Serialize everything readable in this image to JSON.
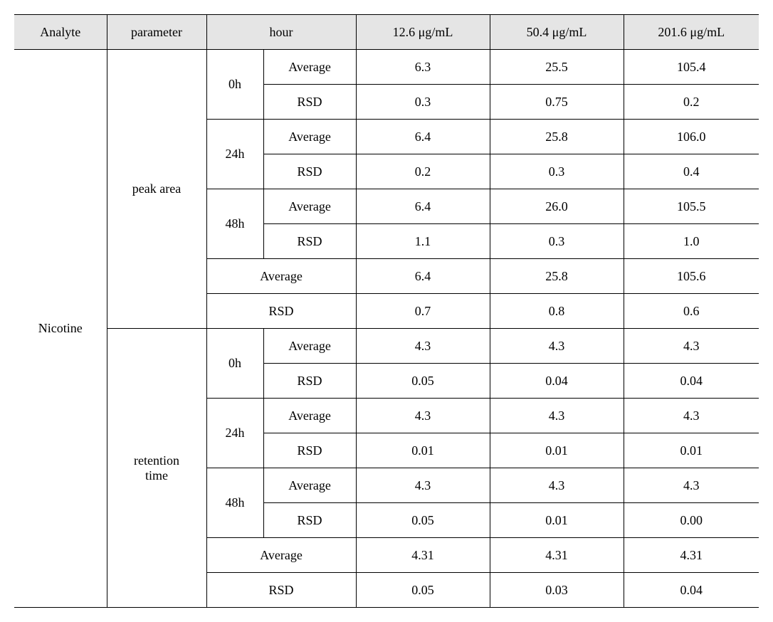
{
  "headers": {
    "analyte": "Analyte",
    "parameter": "parameter",
    "hour": "hour",
    "c1": "12.6 μg/mL",
    "c2": "50.4 μg/mL",
    "c3": "201.6 μg/mL"
  },
  "analyte": "Nicotine",
  "parameters": {
    "peak_area": {
      "label": "peak area",
      "times": {
        "h0": {
          "label": "0h",
          "avg_label": "Average",
          "rsd_label": "RSD",
          "avg": [
            "6.3",
            "25.5",
            "105.4"
          ],
          "rsd": [
            "0.3",
            "0.75",
            "0.2"
          ]
        },
        "h24": {
          "label": "24h",
          "avg_label": "Average",
          "rsd_label": "RSD",
          "avg": [
            "6.4",
            "25.8",
            "106.0"
          ],
          "rsd": [
            "0.2",
            "0.3",
            "0.4"
          ]
        },
        "h48": {
          "label": "48h",
          "avg_label": "Average",
          "rsd_label": "RSD",
          "avg": [
            "6.4",
            "26.0",
            "105.5"
          ],
          "rsd": [
            "1.1",
            "0.3",
            "1.0"
          ]
        }
      },
      "overall": {
        "avg_label": "Average",
        "rsd_label": "RSD",
        "avg": [
          "6.4",
          "25.8",
          "105.6"
        ],
        "rsd": [
          "0.7",
          "0.8",
          "0.6"
        ]
      }
    },
    "retention_time": {
      "label": "retention\ntime",
      "times": {
        "h0": {
          "label": "0h",
          "avg_label": "Average",
          "rsd_label": "RSD",
          "avg": [
            "4.3",
            "4.3",
            "4.3"
          ],
          "rsd": [
            "0.05",
            "0.04",
            "0.04"
          ]
        },
        "h24": {
          "label": "24h",
          "avg_label": "Average",
          "rsd_label": "RSD",
          "avg": [
            "4.3",
            "4.3",
            "4.3"
          ],
          "rsd": [
            "0.01",
            "0.01",
            "0.01"
          ]
        },
        "h48": {
          "label": "48h",
          "avg_label": "Average",
          "rsd_label": "RSD",
          "avg": [
            "4.3",
            "4.3",
            "4.3"
          ],
          "rsd": [
            "0.05",
            "0.01",
            "0.00"
          ]
        }
      },
      "overall": {
        "avg_label": "Average",
        "rsd_label": "RSD",
        "avg": [
          "4.31",
          "4.31",
          "4.31"
        ],
        "rsd": [
          "0.05",
          "0.03",
          "0.04"
        ]
      }
    }
  },
  "style": {
    "header_bg": "#e5e5e5",
    "border_color": "#000000",
    "font_family": "Times New Roman, serif",
    "font_size_pt": 14
  }
}
